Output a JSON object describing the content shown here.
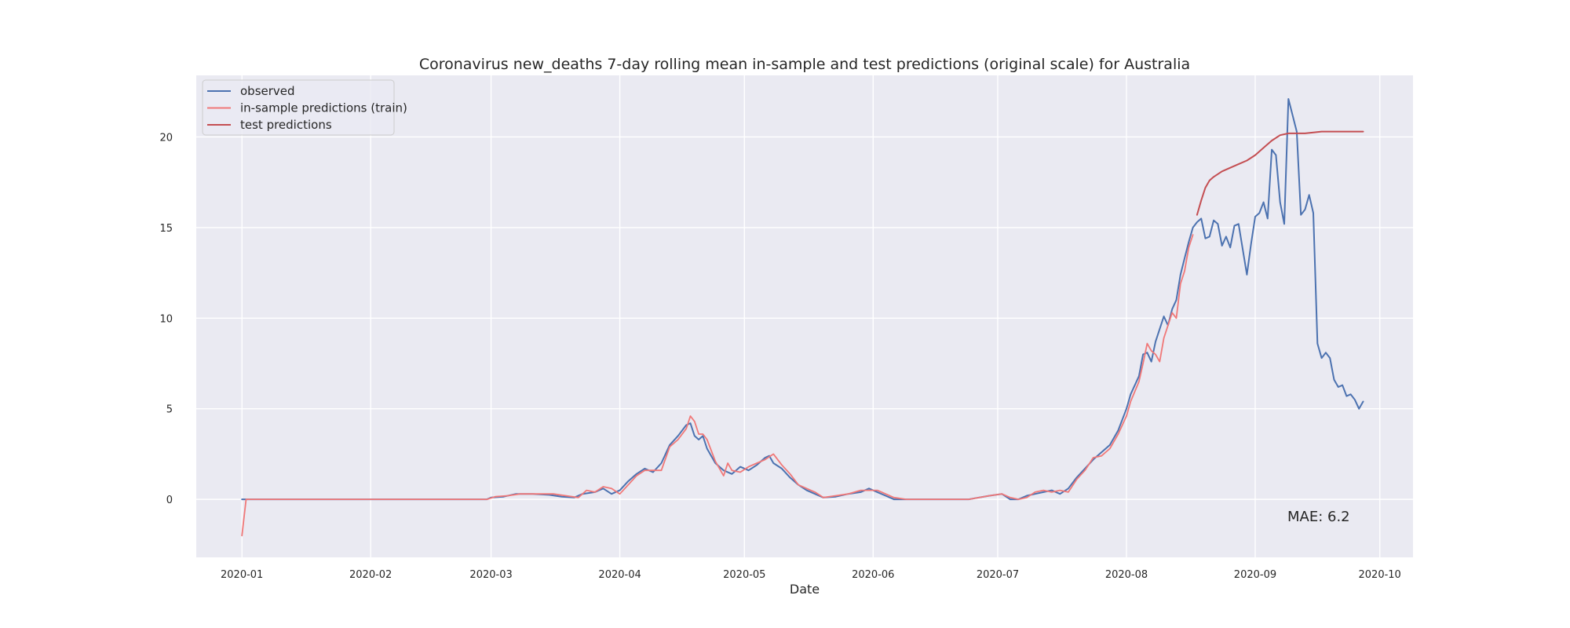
{
  "chart_data": {
    "type": "line",
    "title": "Coronavirus new_deaths 7-day rolling mean in-sample and test predictions (original scale) for Australia",
    "xlabel": "Date",
    "ylabel": "",
    "x_range_days": [
      -11,
      282
    ],
    "ylim": [
      -3.2,
      23.4
    ],
    "yticks": [
      0,
      5,
      10,
      15,
      20
    ],
    "xticks": [
      {
        "day": 0,
        "label": "2020-01"
      },
      {
        "day": 31,
        "label": "2020-02"
      },
      {
        "day": 60,
        "label": "2020-03"
      },
      {
        "day": 91,
        "label": "2020-04"
      },
      {
        "day": 121,
        "label": "2020-05"
      },
      {
        "day": 152,
        "label": "2020-06"
      },
      {
        "day": 182,
        "label": "2020-07"
      },
      {
        "day": 213,
        "label": "2020-08"
      },
      {
        "day": 244,
        "label": "2020-09"
      },
      {
        "day": 274,
        "label": "2020-10"
      }
    ],
    "grid": true,
    "legend_position": "top-left",
    "series": [
      {
        "name": "observed",
        "color": "#4c72b0",
        "points": [
          [
            0,
            0
          ],
          [
            5,
            0
          ],
          [
            10,
            0
          ],
          [
            20,
            0
          ],
          [
            30,
            0
          ],
          [
            40,
            0
          ],
          [
            50,
            0
          ],
          [
            59,
            0
          ],
          [
            60,
            0.1
          ],
          [
            63,
            0.15
          ],
          [
            66,
            0.3
          ],
          [
            70,
            0.3
          ],
          [
            74,
            0.25
          ],
          [
            77,
            0.15
          ],
          [
            80,
            0.1
          ],
          [
            82,
            0.3
          ],
          [
            85,
            0.4
          ],
          [
            87,
            0.6
          ],
          [
            89,
            0.3
          ],
          [
            91,
            0.5
          ],
          [
            93,
            1.0
          ],
          [
            95,
            1.4
          ],
          [
            97,
            1.7
          ],
          [
            99,
            1.5
          ],
          [
            101,
            2.0
          ],
          [
            103,
            3.0
          ],
          [
            105,
            3.5
          ],
          [
            107,
            4.1
          ],
          [
            108,
            4.2
          ],
          [
            109,
            3.5
          ],
          [
            110,
            3.3
          ],
          [
            111,
            3.5
          ],
          [
            112,
            2.8
          ],
          [
            114,
            2.0
          ],
          [
            116,
            1.6
          ],
          [
            118,
            1.4
          ],
          [
            120,
            1.8
          ],
          [
            122,
            1.6
          ],
          [
            124,
            1.9
          ],
          [
            126,
            2.3
          ],
          [
            127,
            2.4
          ],
          [
            128,
            2.0
          ],
          [
            130,
            1.7
          ],
          [
            132,
            1.2
          ],
          [
            134,
            0.8
          ],
          [
            136,
            0.5
          ],
          [
            138,
            0.3
          ],
          [
            140,
            0.1
          ],
          [
            143,
            0.15
          ],
          [
            146,
            0.3
          ],
          [
            149,
            0.4
          ],
          [
            151,
            0.6
          ],
          [
            153,
            0.4
          ],
          [
            155,
            0.2
          ],
          [
            157,
            0
          ],
          [
            160,
            0
          ],
          [
            165,
            0
          ],
          [
            170,
            0
          ],
          [
            175,
            0
          ],
          [
            180,
            0.2
          ],
          [
            183,
            0.3
          ],
          [
            185,
            0
          ],
          [
            187,
            0
          ],
          [
            189,
            0.2
          ],
          [
            191,
            0.3
          ],
          [
            193,
            0.4
          ],
          [
            195,
            0.5
          ],
          [
            197,
            0.3
          ],
          [
            199,
            0.6
          ],
          [
            201,
            1.2
          ],
          [
            203,
            1.7
          ],
          [
            205,
            2.2
          ],
          [
            207,
            2.6
          ],
          [
            209,
            3.0
          ],
          [
            211,
            3.8
          ],
          [
            213,
            5.0
          ],
          [
            214,
            5.8
          ],
          [
            216,
            6.8
          ],
          [
            217,
            8.0
          ],
          [
            218,
            8.1
          ],
          [
            219,
            7.6
          ],
          [
            220,
            8.7
          ],
          [
            221,
            9.4
          ],
          [
            222,
            10.1
          ],
          [
            223,
            9.6
          ],
          [
            224,
            10.5
          ],
          [
            225,
            11.0
          ],
          [
            226,
            12.4
          ],
          [
            227,
            13.3
          ],
          [
            228,
            14.2
          ],
          [
            229,
            15.0
          ],
          [
            230,
            15.3
          ],
          [
            231,
            15.5
          ],
          [
            232,
            14.4
          ],
          [
            233,
            14.5
          ],
          [
            234,
            15.4
          ],
          [
            235,
            15.2
          ],
          [
            236,
            14.0
          ],
          [
            237,
            14.5
          ],
          [
            238,
            13.9
          ],
          [
            239,
            15.1
          ],
          [
            240,
            15.2
          ],
          [
            241,
            13.8
          ],
          [
            242,
            12.4
          ],
          [
            243,
            14.1
          ],
          [
            244,
            15.6
          ],
          [
            245,
            15.8
          ],
          [
            246,
            16.4
          ],
          [
            247,
            15.5
          ],
          [
            248,
            19.3
          ],
          [
            249,
            19.0
          ],
          [
            250,
            16.4
          ],
          [
            251,
            15.2
          ],
          [
            252,
            22.1
          ],
          [
            253,
            21.2
          ],
          [
            254,
            20.3
          ],
          [
            255,
            15.7
          ],
          [
            256,
            16.0
          ],
          [
            257,
            16.8
          ],
          [
            258,
            15.8
          ],
          [
            259,
            8.6
          ],
          [
            260,
            7.8
          ],
          [
            261,
            8.1
          ],
          [
            262,
            7.8
          ],
          [
            263,
            6.6
          ],
          [
            264,
            6.2
          ],
          [
            265,
            6.3
          ],
          [
            266,
            5.7
          ],
          [
            267,
            5.8
          ],
          [
            268,
            5.5
          ],
          [
            269,
            5.0
          ],
          [
            270,
            5.4
          ]
        ]
      },
      {
        "name": "in-sample predictions (train)",
        "color": "#f07878",
        "points": [
          [
            0,
            -2.0
          ],
          [
            1,
            0
          ],
          [
            5,
            0
          ],
          [
            10,
            0
          ],
          [
            20,
            0
          ],
          [
            30,
            0
          ],
          [
            40,
            0
          ],
          [
            50,
            0
          ],
          [
            59,
            0
          ],
          [
            61,
            0.15
          ],
          [
            64,
            0.2
          ],
          [
            67,
            0.3
          ],
          [
            71,
            0.3
          ],
          [
            75,
            0.3
          ],
          [
            78,
            0.2
          ],
          [
            81,
            0.1
          ],
          [
            83,
            0.5
          ],
          [
            85,
            0.4
          ],
          [
            87,
            0.7
          ],
          [
            89,
            0.6
          ],
          [
            91,
            0.3
          ],
          [
            93,
            0.8
          ],
          [
            95,
            1.3
          ],
          [
            97,
            1.6
          ],
          [
            99,
            1.6
          ],
          [
            101,
            1.6
          ],
          [
            103,
            2.9
          ],
          [
            105,
            3.3
          ],
          [
            107,
            3.9
          ],
          [
            108,
            4.6
          ],
          [
            109,
            4.3
          ],
          [
            110,
            3.6
          ],
          [
            111,
            3.6
          ],
          [
            112,
            3.3
          ],
          [
            114,
            2.1
          ],
          [
            116,
            1.3
          ],
          [
            117,
            2.0
          ],
          [
            118,
            1.6
          ],
          [
            120,
            1.5
          ],
          [
            122,
            1.8
          ],
          [
            124,
            2.0
          ],
          [
            126,
            2.2
          ],
          [
            128,
            2.5
          ],
          [
            130,
            1.9
          ],
          [
            132,
            1.4
          ],
          [
            134,
            0.8
          ],
          [
            136,
            0.6
          ],
          [
            138,
            0.4
          ],
          [
            140,
            0.1
          ],
          [
            143,
            0.2
          ],
          [
            146,
            0.3
          ],
          [
            149,
            0.5
          ],
          [
            151,
            0.5
          ],
          [
            153,
            0.5
          ],
          [
            155,
            0.3
          ],
          [
            157,
            0.1
          ],
          [
            160,
            0
          ],
          [
            165,
            0
          ],
          [
            170,
            0
          ],
          [
            175,
            0
          ],
          [
            180,
            0.2
          ],
          [
            183,
            0.3
          ],
          [
            185,
            0.1
          ],
          [
            187,
            0
          ],
          [
            189,
            0.1
          ],
          [
            191,
            0.4
          ],
          [
            193,
            0.5
          ],
          [
            195,
            0.4
          ],
          [
            197,
            0.5
          ],
          [
            199,
            0.4
          ],
          [
            201,
            1.1
          ],
          [
            203,
            1.6
          ],
          [
            205,
            2.3
          ],
          [
            207,
            2.4
          ],
          [
            209,
            2.8
          ],
          [
            211,
            3.6
          ],
          [
            213,
            4.6
          ],
          [
            214,
            5.4
          ],
          [
            216,
            6.5
          ],
          [
            217,
            7.5
          ],
          [
            218,
            8.6
          ],
          [
            219,
            8.2
          ],
          [
            220,
            8.0
          ],
          [
            221,
            7.6
          ],
          [
            222,
            8.9
          ],
          [
            223,
            9.6
          ],
          [
            224,
            10.3
          ],
          [
            225,
            10.0
          ],
          [
            226,
            11.9
          ],
          [
            227,
            12.6
          ],
          [
            228,
            13.9
          ],
          [
            229,
            14.6
          ]
        ]
      },
      {
        "name": "test predictions",
        "color": "#c44e52",
        "points": [
          [
            230,
            15.7
          ],
          [
            231,
            16.5
          ],
          [
            232,
            17.2
          ],
          [
            233,
            17.6
          ],
          [
            234,
            17.8
          ],
          [
            236,
            18.1
          ],
          [
            238,
            18.3
          ],
          [
            240,
            18.5
          ],
          [
            242,
            18.7
          ],
          [
            244,
            19.0
          ],
          [
            246,
            19.4
          ],
          [
            248,
            19.8
          ],
          [
            250,
            20.1
          ],
          [
            252,
            20.2
          ],
          [
            256,
            20.2
          ],
          [
            260,
            20.3
          ],
          [
            264,
            20.3
          ],
          [
            268,
            20.3
          ],
          [
            270,
            20.3
          ]
        ]
      }
    ],
    "annotation": "MAE: 6.2"
  }
}
